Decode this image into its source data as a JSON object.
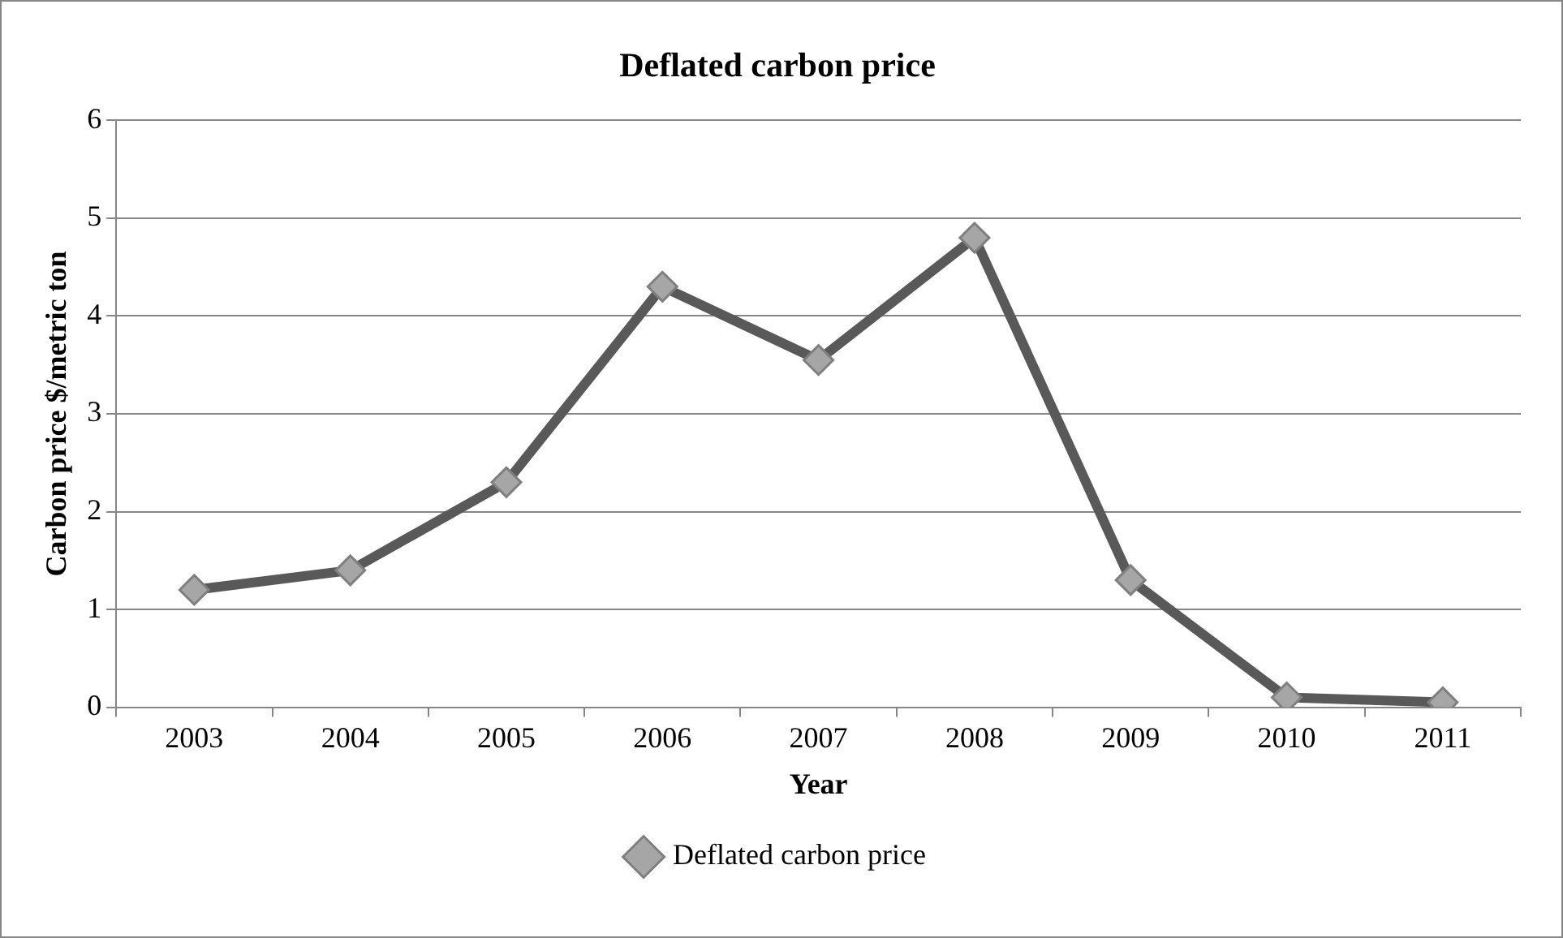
{
  "chart_data": {
    "type": "line",
    "title": "Deflated carbon price",
    "xlabel": "Year",
    "ylabel": "Carbon price $/metric ton",
    "categories": [
      "2003",
      "2004",
      "2005",
      "2006",
      "2007",
      "2008",
      "2009",
      "2010",
      "2011"
    ],
    "series": [
      {
        "name": "Deflated carbon price",
        "color": "#595959",
        "values": [
          1.2,
          1.4,
          2.3,
          4.3,
          3.55,
          4.8,
          1.3,
          0.1,
          0.05
        ]
      }
    ],
    "ylim": [
      0,
      6
    ],
    "yticks": [
      0,
      1,
      2,
      3,
      4,
      5,
      6
    ],
    "grid": "y",
    "legend": "bottom",
    "marker": "diamond",
    "line_style": "solid"
  }
}
